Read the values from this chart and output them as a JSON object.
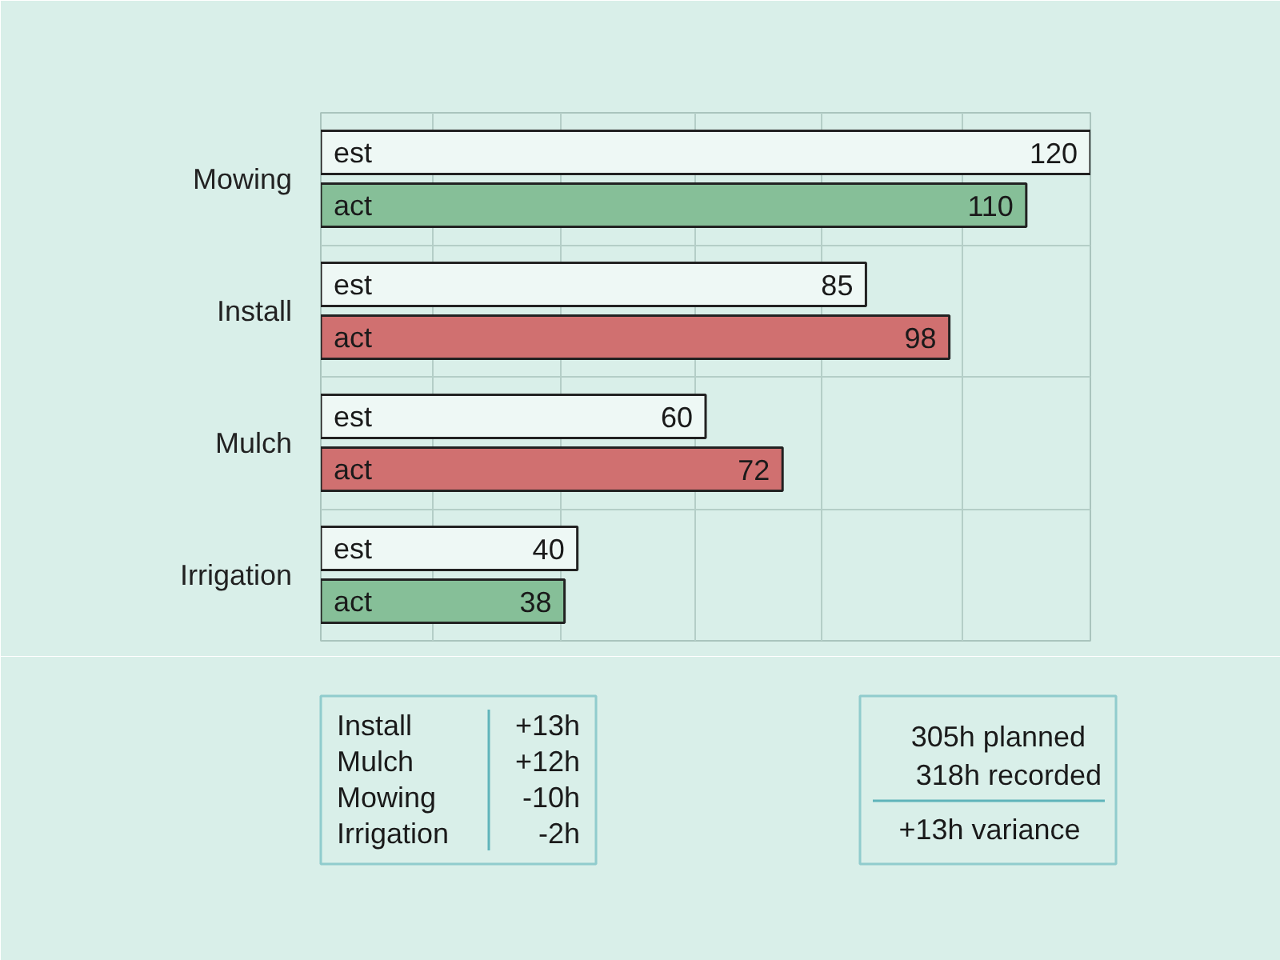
{
  "chart_data": {
    "type": "bar",
    "orientation": "horizontal",
    "categories": [
      "Mowing",
      "Install",
      "Mulch",
      "Irrigation"
    ],
    "series": [
      {
        "name": "est",
        "color": "#eef8f5",
        "values": [
          120,
          85,
          60,
          40
        ]
      },
      {
        "name": "act",
        "colors": [
          "#86bf98",
          "#d07070",
          "#d07070",
          "#86bf98"
        ],
        "values": [
          110,
          98,
          72,
          38
        ]
      }
    ],
    "data_labels": true,
    "xlim": [
      0,
      120
    ],
    "xticks": [
      {
        "value": 0,
        "label": null
      },
      {
        "value": 17.5,
        "label": null
      },
      {
        "value": 37.5,
        "label": null
      },
      {
        "value": 58.5,
        "label": null
      },
      {
        "value": 78,
        "label": null
      },
      {
        "value": 100,
        "label": null
      },
      {
        "value": 120,
        "label": null
      }
    ],
    "grid": true,
    "legend": false,
    "tick_labels": "y",
    "annotations": [
      "Install",
      "+13h",
      "Mulch",
      "+12h",
      "Mowing",
      "-10h",
      "Irrigation",
      "-2h",
      "305h planned",
      "318h recorded",
      "+13h variance"
    ]
  }
}
